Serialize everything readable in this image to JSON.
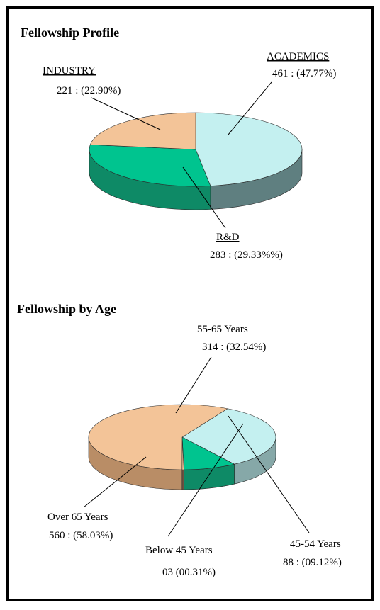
{
  "chart_data": [
    {
      "type": "pie",
      "title": "Fellowship Profile",
      "slices": [
        {
          "label": "ACADEMICS",
          "value": 461,
          "value_text": "461 : (47.77%)",
          "color": "#c4f0f0",
          "side_color": "#5f7f80"
        },
        {
          "label": "R&D",
          "value": 283,
          "value_text": "283 : (29.33%%)",
          "color": "#00c48f",
          "side_color": "#0e8a66"
        },
        {
          "label": "INDUSTRY",
          "value": 221,
          "value_text": "221 : (22.90%)",
          "color": "#f3c498",
          "side_color": "#b98d66"
        }
      ]
    },
    {
      "type": "pie",
      "title": "Fellowship by Age",
      "slices": [
        {
          "label": "55-65 Years",
          "value": 314,
          "value_text": "314 : (32.54%)",
          "color": "#c4f0f0",
          "side_color": "#86a8a8"
        },
        {
          "label": "45-54 Years",
          "value": 88,
          "value_text": "88 : (09.12%)",
          "color": "#00c48f",
          "side_color": "#0e8a66"
        },
        {
          "label": "Below 45 Years",
          "value": 3,
          "value_text": "03  (00.31%)",
          "color": "#f3c498",
          "side_color": "#6e5240"
        },
        {
          "label": "Over 65 Years",
          "value": 560,
          "value_text": "560 : (58.03%)",
          "color": "#f3c498",
          "side_color": "#b98d66"
        }
      ]
    }
  ]
}
